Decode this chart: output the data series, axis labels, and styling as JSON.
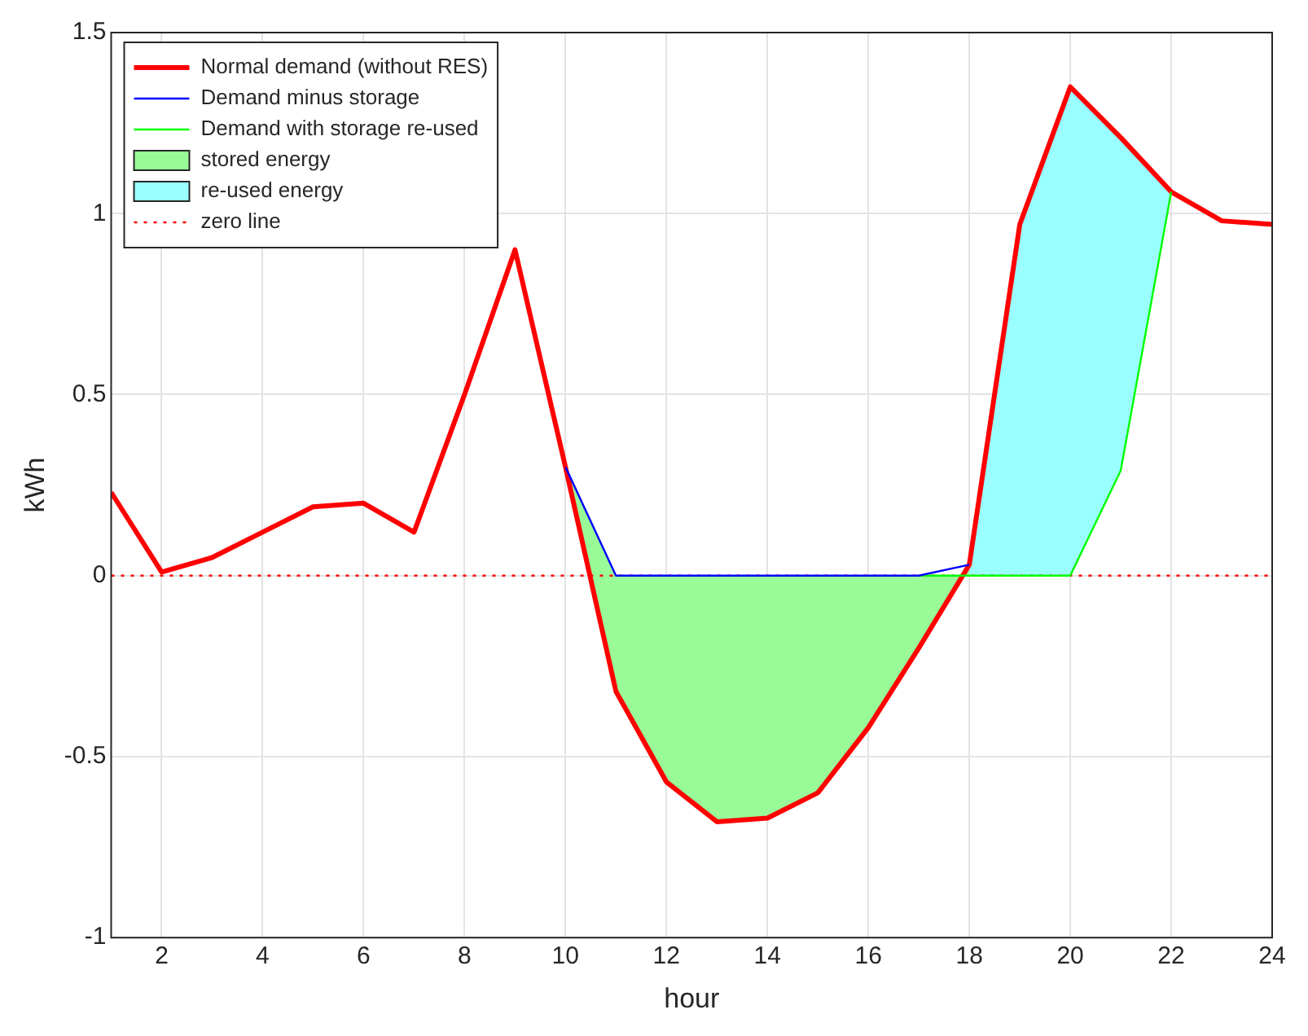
{
  "chart_data": {
    "type": "line",
    "xlabel": "hour",
    "ylabel": "kWh",
    "x": [
      1,
      2,
      3,
      4,
      5,
      6,
      7,
      8,
      9,
      10,
      11,
      12,
      13,
      14,
      15,
      16,
      17,
      18,
      19,
      20,
      21,
      22,
      23,
      24
    ],
    "series": [
      {
        "name": "Normal demand (without RES)",
        "type": "line",
        "color": "#ff0000",
        "values": [
          0.23,
          0.01,
          0.05,
          0.12,
          0.19,
          0.2,
          0.12,
          0.5,
          0.9,
          0.3,
          -0.32,
          -0.57,
          -0.68,
          -0.67,
          -0.6,
          -0.42,
          -0.2,
          0.03,
          0.97,
          1.35,
          1.21,
          1.06,
          0.98,
          0.97
        ]
      },
      {
        "name": "Demand minus storage",
        "type": "line",
        "color": "#0000ff",
        "values": [
          null,
          null,
          null,
          null,
          null,
          null,
          null,
          null,
          null,
          0.3,
          0,
          0,
          0,
          0,
          0,
          0,
          0,
          0.03,
          null,
          null,
          null,
          null,
          null,
          null
        ]
      },
      {
        "name": "Demand with storage re-used",
        "type": "line",
        "color": "#00ff00",
        "values": [
          null,
          null,
          null,
          null,
          null,
          null,
          null,
          null,
          null,
          null,
          null,
          null,
          null,
          null,
          null,
          null,
          0,
          0,
          0,
          0,
          0.29,
          1.06,
          null,
          null
        ]
      },
      {
        "name": "stored energy",
        "type": "area",
        "color": "#98fb98",
        "x": [
          10,
          11,
          12,
          13,
          14,
          15,
          16,
          17,
          18
        ],
        "values": [
          0.3,
          -0.32,
          -0.57,
          -0.68,
          -0.67,
          -0.6,
          -0.42,
          -0.2,
          0.03
        ]
      },
      {
        "name": "re-used energy",
        "type": "area",
        "color": "#99ffff",
        "x": [
          18,
          19,
          20,
          21,
          22
        ],
        "values": [
          0.03,
          0.97,
          1.35,
          1.21,
          1.06
        ]
      }
    ],
    "ref_lines": [
      {
        "axis": "y",
        "value": 0,
        "label": "zero line",
        "color": "#ff0000",
        "line_style": "dotted"
      }
    ],
    "xlim": [
      1,
      24
    ],
    "xticks": [
      2,
      4,
      6,
      8,
      10,
      12,
      14,
      16,
      18,
      20,
      22,
      24
    ],
    "ylim": [
      -1,
      1.5
    ],
    "yticks": [
      -1,
      -0.5,
      0,
      0.5,
      1,
      1.5
    ],
    "grid": true,
    "legend": "top left",
    "marker": "none"
  }
}
